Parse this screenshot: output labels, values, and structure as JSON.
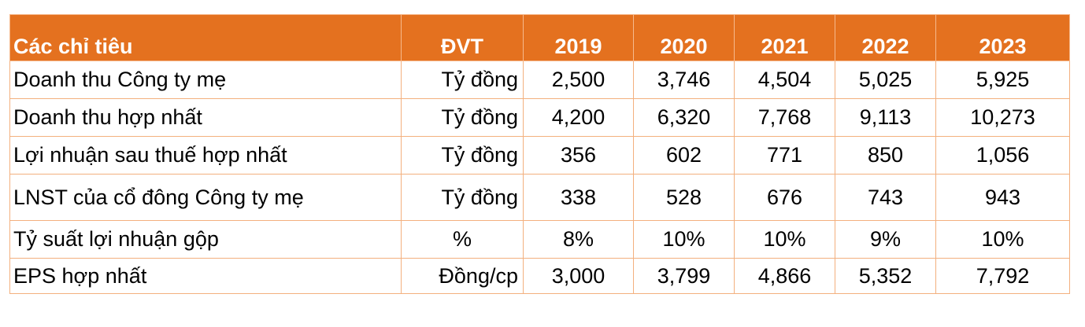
{
  "table": {
    "headers": [
      "Các chỉ tiêu",
      "ĐVT",
      "2019",
      "2020",
      "2021",
      "2022",
      "2023"
    ],
    "rows": [
      {
        "label": "Doanh thu Công ty mẹ",
        "unit": "Tỷ đồng",
        "values": [
          "2,500",
          "3,746",
          "4,504",
          "5,025",
          "5,925"
        ]
      },
      {
        "label": "Doanh thu hợp nhất",
        "unit": "Tỷ đồng",
        "values": [
          "4,200",
          "6,320",
          "7,768",
          "9,113",
          "10,273"
        ]
      },
      {
        "label": "Lợi nhuận sau thuế hợp nhất",
        "unit": "Tỷ đồng",
        "values": [
          "356",
          "602",
          "771",
          "850",
          "1,056"
        ]
      },
      {
        "label": "LNST của cổ đông Công ty mẹ",
        "unit": "Tỷ đồng",
        "values": [
          "338",
          "528",
          "676",
          "743",
          "943"
        ]
      },
      {
        "label": "Tỷ suất lợi nhuận gộp",
        "unit": "%",
        "values": [
          "8%",
          "10%",
          "10%",
          "9%",
          "10%"
        ]
      },
      {
        "label": "EPS hợp nhất",
        "unit": "Đồng/cp",
        "values": [
          "3,000",
          "3,799",
          "4,866",
          "5,352",
          "7,792"
        ]
      }
    ]
  },
  "colors": {
    "header_background": "#e4711f",
    "header_text": "#ffffff",
    "grid_line": "#f3b07e"
  }
}
